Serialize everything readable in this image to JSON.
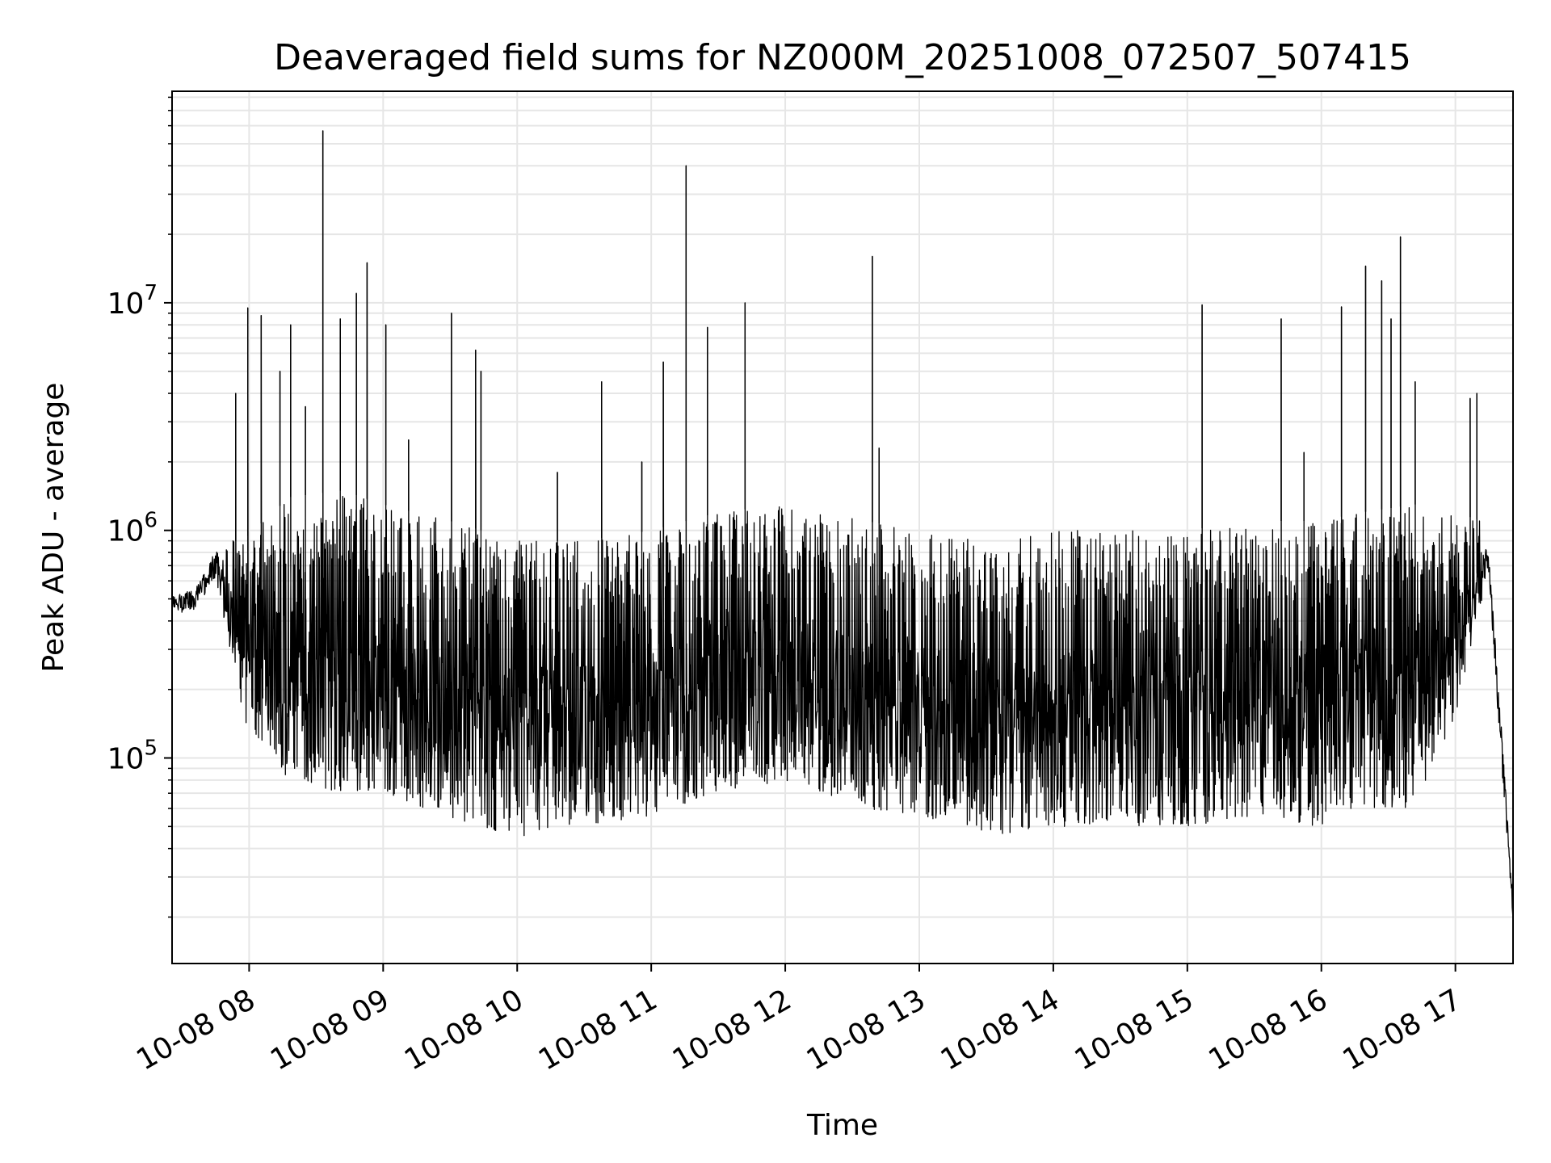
{
  "chart_data": {
    "type": "line",
    "title": "Deaveraged field sums for NZ000M_20251008_072507_507415",
    "xlabel": "Time",
    "ylabel": "Peak ADU - average",
    "yscale": "log",
    "grid": true,
    "line_color": "#000000",
    "grid_color": "#e6e6e6",
    "xlim_hours": [
      7.425,
      17.43
    ],
    "ylim": [
      12500,
      85000000
    ],
    "x_ticks": [
      {
        "hour": 8,
        "label": "10-08 08"
      },
      {
        "hour": 9,
        "label": "10-08 09"
      },
      {
        "hour": 10,
        "label": "10-08 10"
      },
      {
        "hour": 11,
        "label": "10-08 11"
      },
      {
        "hour": 12,
        "label": "10-08 12"
      },
      {
        "hour": 13,
        "label": "10-08 13"
      },
      {
        "hour": 14,
        "label": "10-08 14"
      },
      {
        "hour": 15,
        "label": "10-08 15"
      },
      {
        "hour": 16,
        "label": "10-08 16"
      },
      {
        "hour": 17,
        "label": "10-08 17"
      }
    ],
    "y_ticks": [
      {
        "value": 100000,
        "base": "10",
        "exp": "5"
      },
      {
        "value": 1000000,
        "base": "10",
        "exp": "6"
      },
      {
        "value": 10000000,
        "base": "10",
        "exp": "7"
      }
    ],
    "baseline_envelope": [
      {
        "hour": 7.43,
        "low": 400000,
        "high": 550000
      },
      {
        "hour": 7.6,
        "low": 420000,
        "high": 600000
      },
      {
        "hour": 7.75,
        "low": 550000,
        "high": 900000
      },
      {
        "hour": 7.95,
        "low": 150000,
        "high": 900000
      },
      {
        "hour": 8.3,
        "low": 80000,
        "high": 1400000
      },
      {
        "hour": 8.7,
        "low": 70000,
        "high": 1500000
      },
      {
        "hour": 9.0,
        "low": 70000,
        "high": 1300000
      },
      {
        "hour": 9.5,
        "low": 55000,
        "high": 1100000
      },
      {
        "hour": 10.0,
        "low": 45000,
        "high": 900000
      },
      {
        "hour": 10.5,
        "low": 50000,
        "high": 900000
      },
      {
        "hour": 11.0,
        "low": 55000,
        "high": 1000000
      },
      {
        "hour": 11.5,
        "low": 70000,
        "high": 1200000
      },
      {
        "hour": 12.0,
        "low": 80000,
        "high": 1300000
      },
      {
        "hour": 12.3,
        "low": 70000,
        "high": 1200000
      },
      {
        "hour": 12.6,
        "low": 60000,
        "high": 1100000
      },
      {
        "hour": 13.0,
        "low": 55000,
        "high": 1000000
      },
      {
        "hour": 13.5,
        "low": 45000,
        "high": 900000
      },
      {
        "hour": 14.0,
        "low": 50000,
        "high": 1000000
      },
      {
        "hour": 14.5,
        "low": 50000,
        "high": 1000000
      },
      {
        "hour": 15.0,
        "low": 50000,
        "high": 1000000
      },
      {
        "hour": 15.5,
        "low": 55000,
        "high": 1100000
      },
      {
        "hour": 16.0,
        "low": 50000,
        "high": 1100000
      },
      {
        "hour": 16.3,
        "low": 60000,
        "high": 1200000
      },
      {
        "hour": 16.7,
        "low": 60000,
        "high": 1300000
      },
      {
        "hour": 17.0,
        "low": 150000,
        "high": 1200000
      },
      {
        "hour": 17.2,
        "low": 500000,
        "high": 1100000
      },
      {
        "hour": 17.25,
        "low": 600000,
        "high": 800000
      },
      {
        "hour": 17.32,
        "low": 130000,
        "high": 250000
      },
      {
        "hour": 17.43,
        "low": 17000,
        "high": 25000
      }
    ],
    "spikes": [
      {
        "hour": 7.9,
        "value": 4000000
      },
      {
        "hour": 7.99,
        "value": 9500000
      },
      {
        "hour": 8.09,
        "value": 8800000
      },
      {
        "hour": 8.23,
        "value": 5000000
      },
      {
        "hour": 8.31,
        "value": 8000000
      },
      {
        "hour": 8.42,
        "value": 3500000
      },
      {
        "hour": 8.55,
        "value": 57000000
      },
      {
        "hour": 8.68,
        "value": 8500000
      },
      {
        "hour": 8.8,
        "value": 11000000
      },
      {
        "hour": 8.88,
        "value": 15000000
      },
      {
        "hour": 9.02,
        "value": 8000000
      },
      {
        "hour": 9.19,
        "value": 2500000
      },
      {
        "hour": 9.51,
        "value": 9000000
      },
      {
        "hour": 9.69,
        "value": 6200000
      },
      {
        "hour": 9.73,
        "value": 5000000
      },
      {
        "hour": 10.3,
        "value": 1800000
      },
      {
        "hour": 10.63,
        "value": 4500000
      },
      {
        "hour": 10.93,
        "value": 2000000
      },
      {
        "hour": 11.09,
        "value": 5500000
      },
      {
        "hour": 11.26,
        "value": 40000000
      },
      {
        "hour": 11.42,
        "value": 7800000
      },
      {
        "hour": 11.7,
        "value": 10000000
      },
      {
        "hour": 12.65,
        "value": 16000000
      },
      {
        "hour": 12.7,
        "value": 2300000
      },
      {
        "hour": 15.11,
        "value": 9800000
      },
      {
        "hour": 15.7,
        "value": 8500000
      },
      {
        "hour": 15.87,
        "value": 2200000
      },
      {
        "hour": 16.15,
        "value": 9600000
      },
      {
        "hour": 16.33,
        "value": 14500000
      },
      {
        "hour": 16.45,
        "value": 12500000
      },
      {
        "hour": 16.52,
        "value": 8500000
      },
      {
        "hour": 16.59,
        "value": 19500000
      },
      {
        "hour": 16.7,
        "value": 4500000
      },
      {
        "hour": 17.11,
        "value": 3800000
      },
      {
        "hour": 17.16,
        "value": 4000000
      }
    ]
  }
}
